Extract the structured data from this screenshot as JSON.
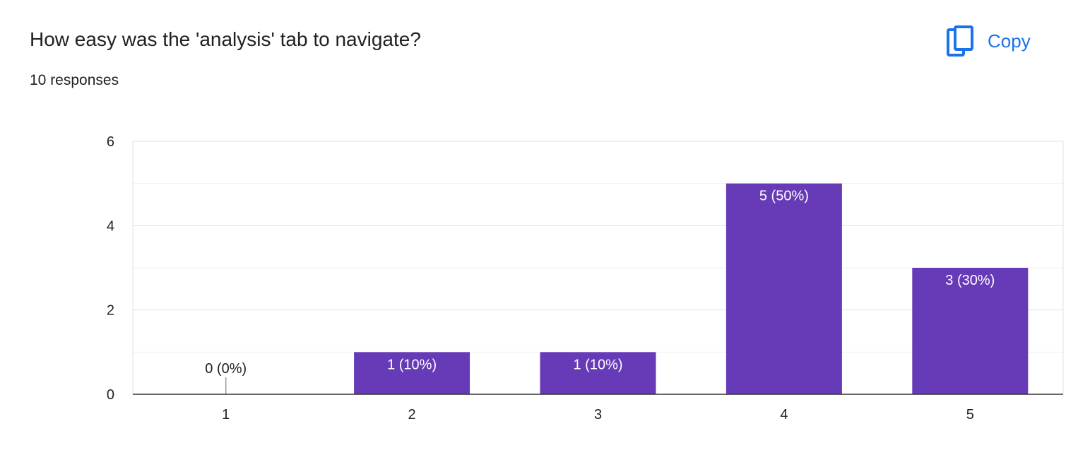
{
  "question": {
    "title": "How easy was the 'analysis' tab to navigate?",
    "responses": "10 responses"
  },
  "copy_button": {
    "label": "Copy",
    "icon": "copy-icon"
  },
  "colors": {
    "bar": "#673ab7",
    "accent": "#1a73e8",
    "grid": "#e8e8e8",
    "axis": "#333333"
  },
  "chart_data": {
    "type": "bar",
    "categories": [
      "1",
      "2",
      "3",
      "4",
      "5"
    ],
    "values": [
      0,
      1,
      1,
      5,
      3
    ],
    "data_labels": [
      "0 (0%)",
      "1 (10%)",
      "1 (10%)",
      "5 (50%)",
      "3 (30%)"
    ],
    "yticks": [
      0,
      2,
      4,
      6
    ],
    "ylim": [
      0,
      6
    ],
    "grid": true
  }
}
